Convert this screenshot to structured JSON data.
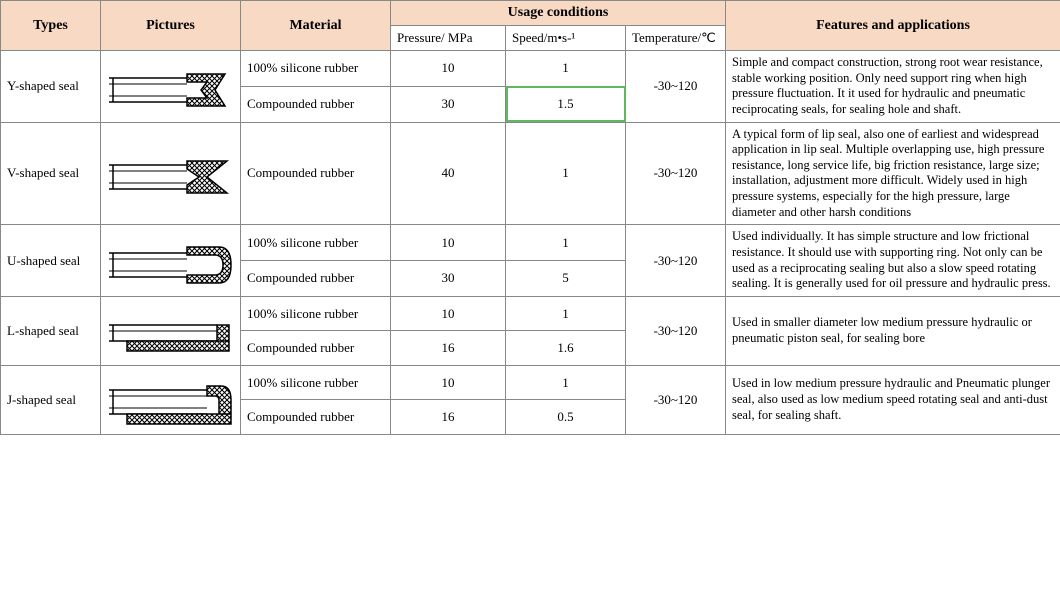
{
  "headers": {
    "types": "Types",
    "pictures": "Pictures",
    "material": "Material",
    "usage": "Usage conditions",
    "features": "Features and applications",
    "pressure": "Pressure/ MPa",
    "speed": "Speed/m•s-¹",
    "temperature": "Temperature/℃"
  },
  "col_widths": {
    "types": 100,
    "pictures": 140,
    "material": 150,
    "pressure": 115,
    "speed": 120,
    "temperature": 100,
    "features": 335
  },
  "rows": [
    {
      "type": "Y-shaped seal",
      "shape": "Y",
      "materials": [
        {
          "name": "100% silicone rubber",
          "pressure": "10",
          "speed": "1"
        },
        {
          "name": "Compounded rubber",
          "pressure": "30",
          "speed": "1.5",
          "speed_highlight": true
        }
      ],
      "temperature": "-30~120",
      "features": "Simple and compact construction, strong root wear resistance, stable working position. Only need support ring when high pressure fluctuation. It it used for hydraulic and pneumatic reciprocating seals, for sealing hole and shaft."
    },
    {
      "type": "V-shaped seal",
      "shape": "V",
      "materials": [
        {
          "name": "Compounded rubber",
          "pressure": "40",
          "speed": "1"
        }
      ],
      "temperature": "-30~120",
      "features": "A typical form of lip seal, also one of earliest and widespread application in lip seal.\nMultiple overlapping use, high pressure resistance, long service life, big friction resistance, large size; installation, adjustment more difficult. Widely used in high pressure systems, especially for the high pressure, large diameter and other harsh conditions"
    },
    {
      "type": "U-shaped seal",
      "shape": "U",
      "materials": [
        {
          "name": "100% silicone rubber",
          "pressure": "10",
          "speed": "1"
        },
        {
          "name": "Compounded rubber",
          "pressure": "30",
          "speed": "5"
        }
      ],
      "temperature": "-30~120",
      "features": "Used individually. It has simple structure and low frictional resistance. It should use with supporting ring. Not only can be used as a reciprocating sealing but also a slow speed rotating sealing. It is generally used for oil pressure and hydraulic press."
    },
    {
      "type": "L-shaped seal",
      "shape": "L",
      "materials": [
        {
          "name": "100% silicone rubber",
          "pressure": "10",
          "speed": "1"
        },
        {
          "name": "Compounded rubber",
          "pressure": "16",
          "speed": "1.6"
        }
      ],
      "temperature": "-30~120",
      "features": "Used in smaller diameter low medium pressure hydraulic or pneumatic piston seal, for sealing bore"
    },
    {
      "type": "J-shaped seal",
      "shape": "J",
      "materials": [
        {
          "name": "100% silicone rubber",
          "pressure": "10",
          "speed": "1"
        },
        {
          "name": "Compounded rubber",
          "pressure": "16",
          "speed": "0.5"
        }
      ],
      "temperature": "-30~120",
      "features": "Used in low medium pressure hydraulic and Pneumatic plunger seal, also used as low medium speed rotating seal and anti-dust seal, for sealing shaft."
    }
  ]
}
